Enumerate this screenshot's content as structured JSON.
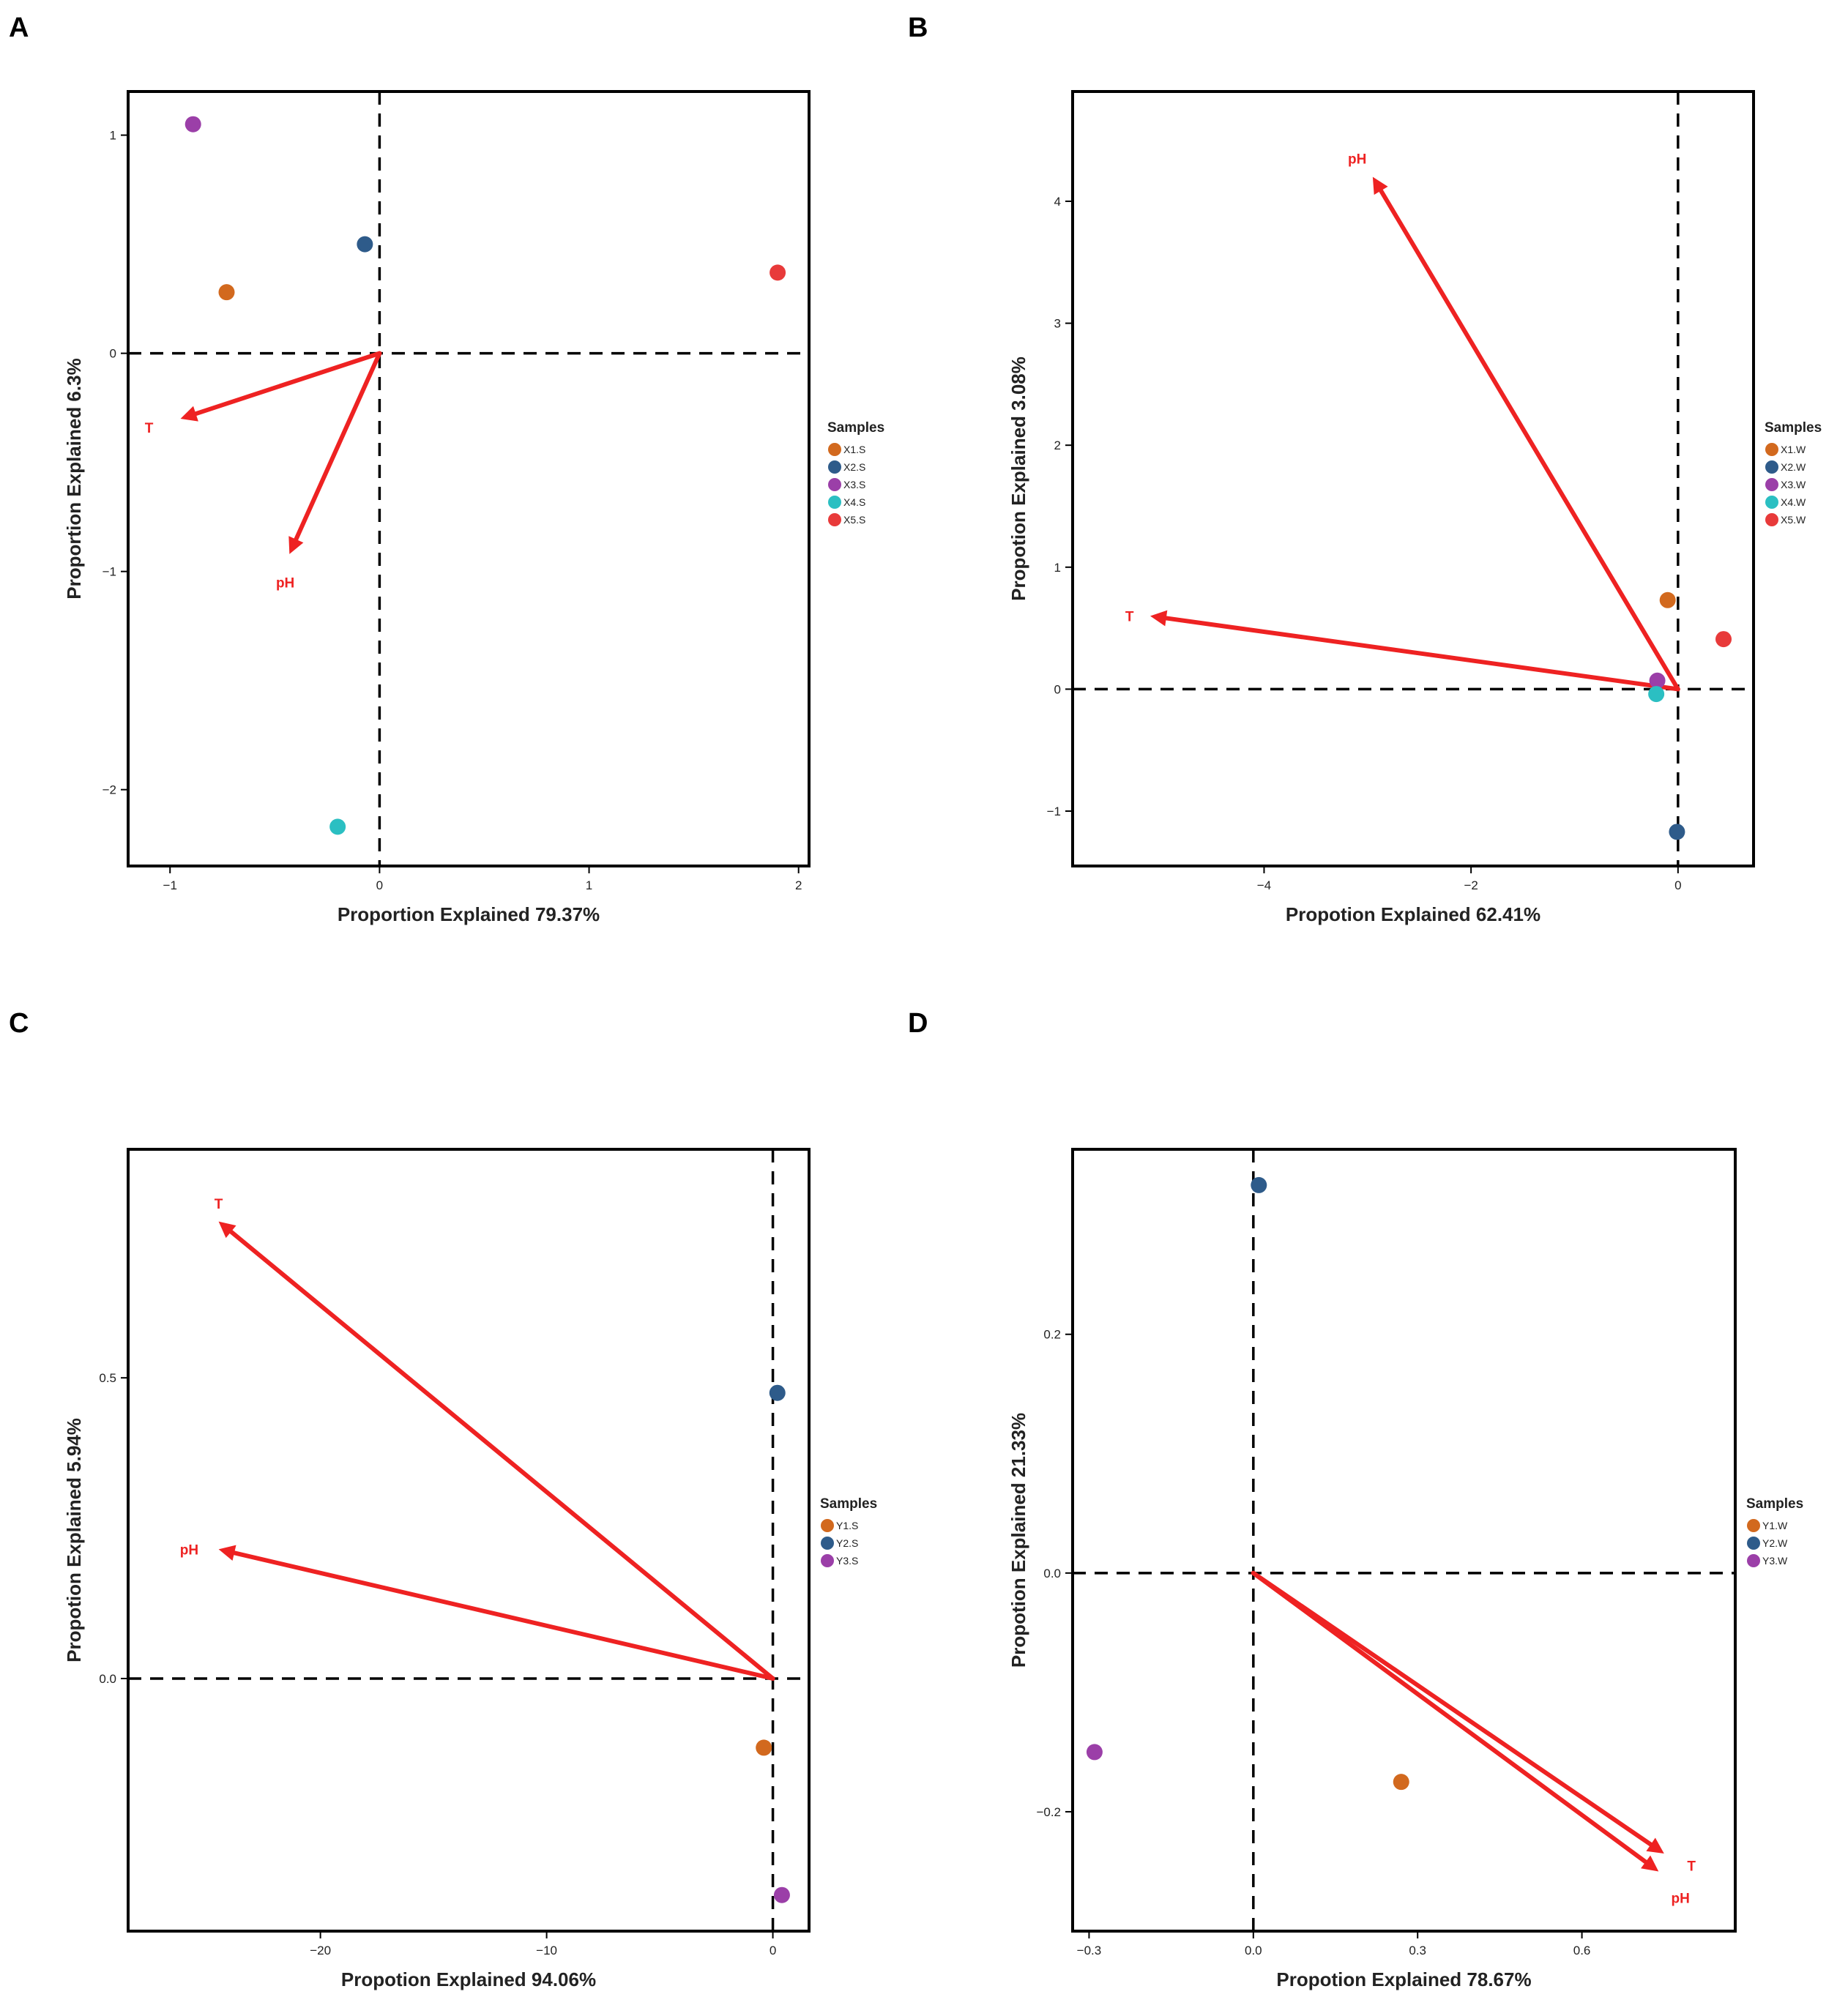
{
  "chart_data": [
    {
      "panel": "A",
      "type": "scatter",
      "subtype": "RDA biplot",
      "xlabel": "Proportion Explained 79.37%",
      "ylabel": "Proportion Explained 6.3%",
      "xlim": [
        -1.2,
        2.05
      ],
      "ylim": [
        -2.35,
        1.2
      ],
      "xticks": [
        -1,
        0,
        1,
        2
      ],
      "yticks": [
        -2,
        -1,
        0,
        1
      ],
      "reference_lines": {
        "x": 0,
        "y": 0,
        "style": "dashed"
      },
      "legend": {
        "title": "Samples",
        "placement": "right"
      },
      "points": [
        {
          "label": "X1.S",
          "x": -0.73,
          "y": 0.28,
          "color": "#d2691e"
        },
        {
          "label": "X2.S",
          "x": -0.07,
          "y": 0.5,
          "color": "#2e5b8a"
        },
        {
          "label": "X3.S",
          "x": -0.89,
          "y": 1.05,
          "color": "#9b3fa8"
        },
        {
          "label": "X4.S",
          "x": -0.2,
          "y": -2.17,
          "color": "#2bbfc2"
        },
        {
          "label": "X5.S",
          "x": 1.9,
          "y": 0.37,
          "color": "#e83a3a"
        }
      ],
      "vectors": [
        {
          "label": "T",
          "x": -0.95,
          "y": -0.3,
          "label_x": -1.1,
          "label_y": -0.34
        },
        {
          "label": "pH",
          "x": -0.43,
          "y": -0.92,
          "label_x": -0.45,
          "label_y": -1.05
        }
      ]
    },
    {
      "panel": "B",
      "type": "scatter",
      "subtype": "RDA biplot",
      "xlabel": "Propotion Explained 62.41%",
      "ylabel": "Propotion Explained 3.08%",
      "xlim": [
        -5.85,
        0.73
      ],
      "ylim": [
        -1.45,
        4.9
      ],
      "xticks": [
        -4,
        -2,
        0
      ],
      "yticks": [
        -1,
        0,
        1,
        2,
        3,
        4
      ],
      "reference_lines": {
        "x": 0,
        "y": 0,
        "style": "dashed"
      },
      "legend": {
        "title": "Samples",
        "placement": "right"
      },
      "points": [
        {
          "label": "X1.W",
          "x": -0.1,
          "y": 0.73,
          "color": "#d2691e"
        },
        {
          "label": "X2.W",
          "x": -0.01,
          "y": -1.17,
          "color": "#2e5b8a"
        },
        {
          "label": "X3.W",
          "x": -0.2,
          "y": 0.07,
          "color": "#9b3fa8"
        },
        {
          "label": "X4.W",
          "x": -0.21,
          "y": -0.04,
          "color": "#2bbfc2"
        },
        {
          "label": "X5.W",
          "x": 0.44,
          "y": 0.41,
          "color": "#e83a3a"
        }
      ],
      "vectors": [
        {
          "label": "pH",
          "x": -2.95,
          "y": 4.2,
          "label_x": -3.1,
          "label_y": 4.35
        },
        {
          "label": "T",
          "x": -5.1,
          "y": 0.6,
          "label_x": -5.3,
          "label_y": 0.6
        }
      ]
    },
    {
      "panel": "C",
      "type": "scatter",
      "subtype": "RDA biplot",
      "xlabel": "Propotion Explained 94.06%",
      "ylabel": "Propotion Explained 5.94%",
      "xlim": [
        -28.5,
        1.6
      ],
      "ylim": [
        -0.42,
        0.88
      ],
      "xticks": [
        -20,
        -10,
        0
      ],
      "yticks": [
        0.0,
        0.5
      ],
      "ytick_labels": [
        "0.0",
        "0.5"
      ],
      "reference_lines": {
        "x": 0,
        "y": 0,
        "style": "dashed"
      },
      "legend": {
        "title": "Samples",
        "placement": "right"
      },
      "points": [
        {
          "label": "Y1.S",
          "x": -0.4,
          "y": -0.115,
          "color": "#d2691e"
        },
        {
          "label": "Y2.S",
          "x": 0.2,
          "y": 0.475,
          "color": "#2e5b8a"
        },
        {
          "label": "Y3.S",
          "x": 0.4,
          "y": -0.36,
          "color": "#9b3fa8"
        }
      ],
      "vectors": [
        {
          "label": "T",
          "x": -24.5,
          "y": 0.76,
          "label_x": -24.5,
          "label_y": 0.79
        },
        {
          "label": "pH",
          "x": -24.5,
          "y": 0.215,
          "label_x": -25.8,
          "label_y": 0.215
        }
      ]
    },
    {
      "panel": "D",
      "type": "scatter",
      "subtype": "RDA biplot",
      "xlabel": "Propotion Explained 78.67%",
      "ylabel": "Propotion Explained 21.33%",
      "xlim": [
        -0.33,
        0.88
      ],
      "ylim": [
        -0.3,
        0.355
      ],
      "xticks": [
        -0.3,
        0.0,
        0.3,
        0.6
      ],
      "xtick_labels": [
        "-0.3",
        "0.0",
        "0.3",
        "0.6"
      ],
      "yticks": [
        -0.2,
        0.0,
        0.2
      ],
      "ytick_labels": [
        "-0.2",
        "0.0",
        "0.2"
      ],
      "reference_lines": {
        "x": 0,
        "y": 0,
        "style": "dashed"
      },
      "legend": {
        "title": "Samples",
        "placement": "right"
      },
      "points": [
        {
          "label": "Y1.W",
          "x": 0.27,
          "y": -0.175,
          "color": "#d2691e"
        },
        {
          "label": "Y2.W",
          "x": 0.01,
          "y": 0.325,
          "color": "#2e5b8a"
        },
        {
          "label": "Y3.W",
          "x": -0.29,
          "y": -0.15,
          "color": "#9b3fa8"
        }
      ],
      "vectors": [
        {
          "label": "T",
          "x": 0.75,
          "y": -0.235,
          "label_x": 0.8,
          "label_y": -0.245
        },
        {
          "label": "pH",
          "x": 0.74,
          "y": -0.25,
          "label_x": 0.78,
          "label_y": -0.272
        }
      ]
    }
  ]
}
